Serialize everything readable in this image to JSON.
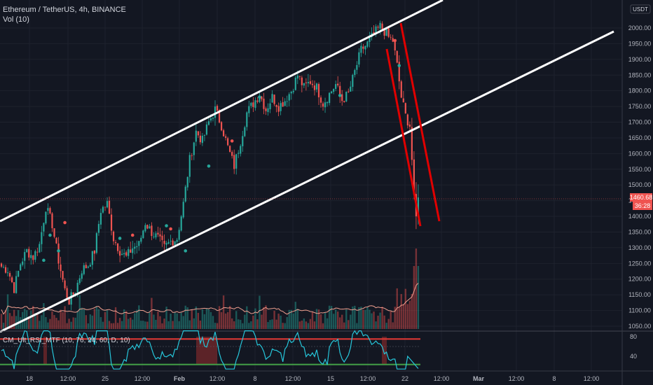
{
  "header": {
    "title": "Ethereum / TetherUS, 4h, BINANCE",
    "volume_label": "Vol (10)"
  },
  "rsi_label": "CM_Ult_RSI_MTF (10, 76, 24, 60, D, 10)",
  "currency": "USDT",
  "current_price_tag": "1460.68",
  "countdown_tag": "36:28",
  "colors": {
    "background": "#131722",
    "up": "#26a69a",
    "down": "#ef5350",
    "channel": "#ffffff",
    "wedge": "#e00000",
    "rsi_line": "#26c6da",
    "rsi_upper": "#e53935",
    "rsi_lower": "#43a047",
    "price_tag": "#ef5350"
  },
  "chart_data": [
    {
      "type": "candlestick",
      "price_axis": {
        "ylim": [
          1040,
          2060
        ],
        "ticks": [
          "2000.00",
          "1950.00",
          "1900.00",
          "1850.00",
          "1800.00",
          "1750.00",
          "1700.00",
          "1650.00",
          "1600.00",
          "1550.00",
          "1500.00",
          "1450.00",
          "1400.00",
          "1350.00",
          "1300.00",
          "1250.00",
          "1200.00",
          "1150.00",
          "1100.00",
          "1050.00"
        ]
      },
      "time_axis": {
        "ticks": [
          "18",
          "12:00",
          "25",
          "12:00",
          "Feb",
          "12:00",
          "8",
          "12:00",
          "15",
          "12:00",
          "22",
          "12:00",
          "Mar",
          "12:00",
          "8",
          "12:00"
        ]
      },
      "price_keypoints": [
        [
          0,
          1240
        ],
        [
          3,
          1230
        ],
        [
          6,
          1170
        ],
        [
          9,
          1250
        ],
        [
          12,
          1290
        ],
        [
          15,
          1270
        ],
        [
          18,
          1310
        ],
        [
          21,
          1430
        ],
        [
          24,
          1375
        ],
        [
          27,
          1260
        ],
        [
          30,
          1165
        ],
        [
          32,
          1130
        ],
        [
          35,
          1165
        ],
        [
          38,
          1230
        ],
        [
          41,
          1245
        ],
        [
          44,
          1290
        ],
        [
          47,
          1420
        ],
        [
          50,
          1440
        ],
        [
          53,
          1330
        ],
        [
          56,
          1290
        ],
        [
          59,
          1270
        ],
        [
          62,
          1300
        ],
        [
          65,
          1310
        ],
        [
          68,
          1380
        ],
        [
          71,
          1350
        ],
        [
          74,
          1330
        ],
        [
          77,
          1300
        ],
        [
          80,
          1320
        ],
        [
          83,
          1330
        ],
        [
          86,
          1440
        ],
        [
          89,
          1580
        ],
        [
          92,
          1670
        ],
        [
          95,
          1640
        ],
        [
          98,
          1700
        ],
        [
          101,
          1740
        ],
        [
          104,
          1690
        ],
        [
          107,
          1620
        ],
        [
          110,
          1560
        ],
        [
          113,
          1640
        ],
        [
          116,
          1730
        ],
        [
          119,
          1760
        ],
        [
          122,
          1790
        ],
        [
          125,
          1740
        ],
        [
          128,
          1780
        ],
        [
          131,
          1750
        ],
        [
          134,
          1770
        ],
        [
          137,
          1800
        ],
        [
          140,
          1850
        ],
        [
          143,
          1810
        ],
        [
          146,
          1830
        ],
        [
          149,
          1810
        ],
        [
          152,
          1760
        ],
        [
          155,
          1790
        ],
        [
          158,
          1820
        ],
        [
          161,
          1770
        ],
        [
          164,
          1790
        ],
        [
          167,
          1860
        ],
        [
          170,
          1930
        ],
        [
          173,
          1950
        ],
        [
          176,
          1980
        ],
        [
          179,
          2005
        ],
        [
          181,
          1990
        ],
        [
          183,
          1970
        ],
        [
          185,
          1960
        ],
        [
          187,
          1880
        ],
        [
          189,
          1780
        ],
        [
          191,
          1720
        ],
        [
          193,
          1690
        ],
        [
          194,
          1580
        ],
        [
          195,
          1470
        ],
        [
          196,
          1400
        ],
        [
          197,
          1460
        ]
      ],
      "channel_lines": [
        {
          "name": "upper",
          "points": [
            [
              "start",
              1325
            ],
            [
              "Feb 21 08:00",
              2020
            ],
            [
              "Feb 22",
              2070
            ]
          ]
        },
        {
          "name": "lower",
          "points": [
            [
              "start",
              1050
            ],
            [
              "Feb 22 12:00",
              1700
            ],
            [
              "Mar 1",
              2000
            ]
          ]
        }
      ],
      "wedge_lines": [
        {
          "points": [
            [
              1970,
              "Feb 21 12:00"
            ],
            [
              1375,
              "Feb 22 16:00"
            ]
          ]
        },
        {
          "points": [
            [
              2015,
              "Feb 21 20:00"
            ],
            [
              1390,
              "Feb 23 04:00"
            ]
          ]
        }
      ]
    },
    {
      "type": "bar",
      "name": "volume",
      "ma_length": 10
    },
    {
      "type": "line",
      "name": "rsi",
      "ylim": [
        0,
        100
      ],
      "ticks": [
        "80",
        "40"
      ],
      "levels": {
        "upper": 76,
        "lower": 24,
        "mid": 60
      }
    }
  ]
}
